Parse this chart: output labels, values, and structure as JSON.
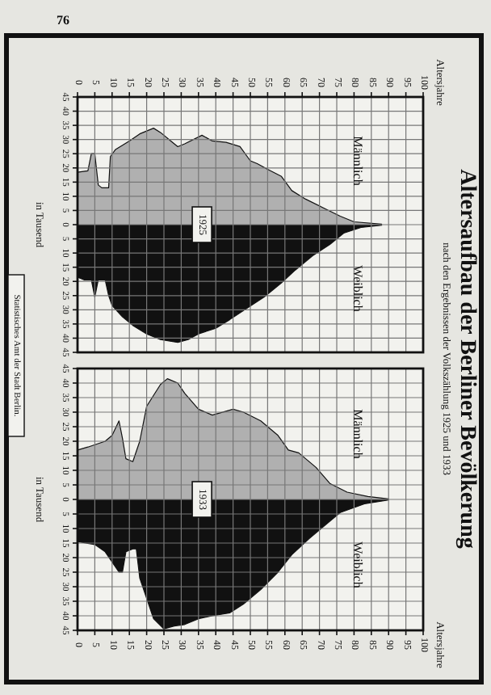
{
  "chart_data": [
    {
      "type": "area",
      "ylabel": "in Tausend",
      "annotations": [
        "76",
        "Statistisches Amt der Stadt Berlin.",
        "Altersaufbau der Berliner Bevölkerung",
        "nach den Ergebnissen der Volkszählung 1925 und 1933",
        "Altersjahre",
        {
          "text": "1925",
          "x": 36,
          "y": 0
        }
      ],
      "xlim": [
        0,
        100
      ],
      "xticks": [
        0,
        5,
        10,
        15,
        20,
        25,
        30,
        35,
        40,
        45,
        50,
        55,
        60,
        65,
        70,
        75,
        80,
        85,
        90,
        95,
        100
      ],
      "ylim": [
        -45,
        45
      ],
      "yticks": [
        {
          "value": -45,
          "label": "45"
        },
        {
          "value": -40,
          "label": "40"
        },
        {
          "value": -35,
          "label": "35"
        },
        {
          "value": -30,
          "label": "30"
        },
        {
          "value": -25,
          "label": "25"
        },
        {
          "value": -20,
          "label": "20"
        },
        {
          "value": -15,
          "label": "15"
        },
        {
          "value": -10,
          "label": "10"
        },
        {
          "value": -5,
          "label": "5"
        },
        0,
        5,
        10,
        15,
        20,
        25,
        30,
        35,
        40,
        45
      ],
      "grid": true,
      "series": [
        {
          "name": "Männlich",
          "color": "#b0b0b0",
          "x": [
            0,
            3,
            4,
            5,
            6,
            7,
            9,
            9.5,
            11,
            15,
            18,
            22,
            24,
            27,
            29,
            31,
            36,
            39,
            43,
            47,
            50,
            52,
            55,
            59,
            62,
            66,
            71,
            76,
            80,
            88
          ],
          "values": [
            18.5,
            19,
            25,
            25,
            14,
            13,
            13,
            24,
            26.5,
            29.5,
            32,
            34,
            32.5,
            29.5,
            27.5,
            28.5,
            31.5,
            29.5,
            29,
            27.5,
            22.5,
            21.5,
            19.5,
            17,
            12,
            9,
            6,
            3,
            1,
            0.2
          ]
        },
        {
          "name": "Weiblich",
          "color": "#111111",
          "x": [
            0,
            2,
            4,
            5,
            6,
            8,
            9,
            10,
            13,
            16,
            20,
            24,
            29,
            32,
            35,
            40,
            44,
            49,
            54,
            59,
            63,
            68,
            73,
            77,
            82,
            88
          ],
          "values": [
            -18.5,
            -19.5,
            -19.5,
            -25.5,
            -19.5,
            -19.5,
            -25,
            -28.5,
            -32.5,
            -35.5,
            -38.5,
            -40.5,
            -41.5,
            -40.5,
            -38.5,
            -36.5,
            -33.5,
            -29.5,
            -25.5,
            -20.5,
            -16,
            -11,
            -7,
            -3,
            -1,
            -0.2
          ]
        }
      ]
    },
    {
      "type": "area",
      "ylabel": "in Tausend",
      "annotations": [
        "Altersjahre",
        {
          "text": "1933",
          "x": 36,
          "y": 0
        }
      ],
      "xlim": [
        0,
        100
      ],
      "xticks": [
        0,
        5,
        10,
        15,
        20,
        25,
        30,
        35,
        40,
        45,
        50,
        55,
        60,
        65,
        70,
        75,
        80,
        85,
        90,
        95,
        100
      ],
      "ylim": [
        -45,
        45
      ],
      "yticks": [
        {
          "value": -45,
          "label": "45"
        },
        {
          "value": -40,
          "label": "40"
        },
        {
          "value": -35,
          "label": "35"
        },
        {
          "value": -30,
          "label": "30"
        },
        {
          "value": -25,
          "label": "25"
        },
        {
          "value": -20,
          "label": "20"
        },
        {
          "value": -15,
          "label": "15"
        },
        {
          "value": -10,
          "label": "10"
        },
        {
          "value": -5,
          "label": "5"
        },
        0,
        5,
        10,
        15,
        20,
        25,
        30,
        35,
        40,
        45
      ],
      "grid": true,
      "series": [
        {
          "name": "Männlich",
          "color": "#b0b0b0",
          "x": [
            0,
            3,
            8,
            10,
            12,
            13,
            14,
            16,
            18,
            20,
            24,
            26,
            29,
            31,
            35,
            39,
            45,
            48,
            53,
            58,
            61,
            64,
            69,
            73,
            78,
            84,
            90
          ],
          "values": [
            17,
            18,
            20,
            22,
            27,
            21,
            14,
            13,
            20,
            32,
            39.5,
            41.5,
            40,
            36.5,
            31,
            29,
            31,
            30,
            27,
            22,
            17,
            16,
            11,
            5.5,
            2.5,
            1,
            0.2
          ]
        },
        {
          "name": "Weiblich",
          "color": "#111111",
          "x": [
            0,
            5,
            8,
            12,
            13,
            14,
            16,
            17,
            18,
            22,
            25,
            28,
            31,
            35,
            39,
            44,
            48,
            53,
            58,
            62,
            67,
            72,
            76,
            83,
            90
          ],
          "values": [
            -14.5,
            -15.5,
            -18,
            -25,
            -25,
            -18,
            -17,
            -17,
            -27,
            -41,
            -44.5,
            -43.5,
            -43,
            -41,
            -40,
            -39,
            -36,
            -31,
            -25,
            -19,
            -13.5,
            -8.5,
            -4.5,
            -1.5,
            -0.2
          ]
        }
      ]
    }
  ]
}
